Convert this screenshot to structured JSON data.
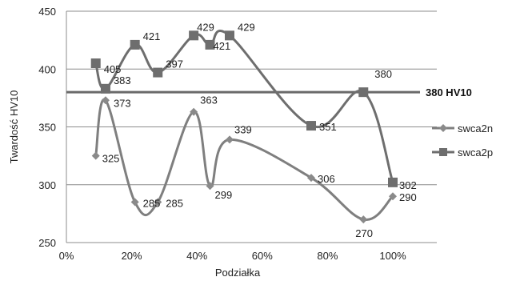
{
  "chart_data": {
    "type": "line",
    "xlabel": "Podziałka",
    "ylabel": "Twardość HV10",
    "xlim": [
      0,
      100
    ],
    "ylim": [
      250,
      450
    ],
    "x_ticks": [
      0,
      20,
      40,
      60,
      80,
      100
    ],
    "x_tick_labels": [
      "0%",
      "20%",
      "40%",
      "60%",
      "80%",
      "100%"
    ],
    "y_ticks": [
      250,
      300,
      350,
      400,
      450
    ],
    "y_tick_labels": [
      "250",
      "300",
      "350",
      "400",
      "450"
    ],
    "grid": "horizontal",
    "legend_position": "right",
    "reference_line": {
      "value": 380,
      "label": "380 HV10"
    },
    "series": [
      {
        "name": "swca2n",
        "marker": "diamond",
        "color": "#7f7f7f",
        "points": [
          {
            "x": 9,
            "y": 325,
            "label": "325"
          },
          {
            "x": 12,
            "y": 373,
            "label": "373"
          },
          {
            "x": 21,
            "y": 285,
            "label": "285"
          },
          {
            "x": 28,
            "y": 285,
            "label": "285"
          },
          {
            "x": 39,
            "y": 363,
            "label": "363"
          },
          {
            "x": 44,
            "y": 299,
            "label": "299"
          },
          {
            "x": 50,
            "y": 339,
            "label": "339"
          },
          {
            "x": 75,
            "y": 306,
            "label": "306"
          },
          {
            "x": 91,
            "y": 270,
            "label": "270"
          },
          {
            "x": 100,
            "y": 290,
            "label": "290"
          }
        ]
      },
      {
        "name": "swca2p",
        "marker": "square",
        "color": "#6e6e6e",
        "points": [
          {
            "x": 9,
            "y": 405,
            "label": "405"
          },
          {
            "x": 12,
            "y": 383,
            "label": "383"
          },
          {
            "x": 21,
            "y": 421,
            "label": "421"
          },
          {
            "x": 28,
            "y": 397,
            "label": "397"
          },
          {
            "x": 39,
            "y": 429,
            "label": "429"
          },
          {
            "x": 44,
            "y": 421,
            "label": "421"
          },
          {
            "x": 50,
            "y": 429,
            "label": "429"
          },
          {
            "x": 75,
            "y": 351,
            "label": "351"
          },
          {
            "x": 91,
            "y": 380,
            "label": "380"
          },
          {
            "x": 100,
            "y": 302,
            "label": "302"
          }
        ]
      }
    ]
  }
}
